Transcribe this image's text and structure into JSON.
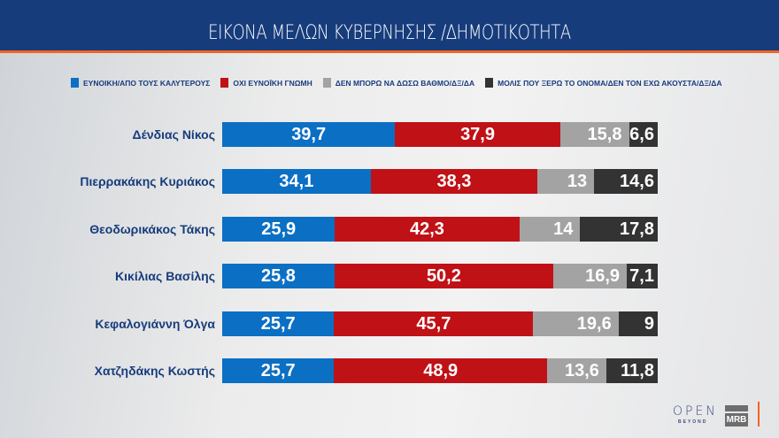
{
  "header": {
    "title": "ΕΙΚΟΝΑ ΜΕΛΩΝ ΚΥΒΕΡΝΗΣΗΣ /ΔΗΜΟΤΙΚΟΤΗΤΑ"
  },
  "chart_data": {
    "type": "bar",
    "orientation": "horizontal-stacked",
    "title": "ΕΙΚΟΝΑ ΜΕΛΩΝ ΚΥΒΕΡΝΗΣΗΣ /ΔΗΜΟΤΙΚΟΤΗΤΑ",
    "legend_position": "top",
    "categories": [
      "Δένδιας Νίκος",
      "Πιερρακάκης Κυριάκος",
      "Θεοδωρικάκος Τάκης",
      "Κικίλιας Βασίλης",
      "Κεφαλογιάννη Όλγα",
      "Χατζηδάκης Κωστής"
    ],
    "series": [
      {
        "name": "ΕΥΝΟΙΚΗ/ΑΠΟ ΤΟΥΣ ΚΑΛΥΤΕΡΟΥΣ",
        "color": "#0b6fc4",
        "values": [
          "39,7",
          "34,1",
          "25,9",
          "25,8",
          "25,7",
          "25,7"
        ]
      },
      {
        "name": "ΟΧΙ ΕΥΝΟΪΚΗ ΓΝΩΜΗ",
        "color": "#c01116",
        "values": [
          "37,9",
          "38,3",
          "42,3",
          "50,2",
          "45,7",
          "48,9"
        ]
      },
      {
        "name": "ΔΕΝ ΜΠΟΡΩ ΝΑ ΔΩΣΩ ΒΑΘΜΟ/ΔΞ/ΔΑ",
        "color": "#a3a3a3",
        "values": [
          "15,8",
          "13",
          "14",
          "16,9",
          "19,6",
          "13,6"
        ]
      },
      {
        "name": "ΜΟΛΙΣ ΠΟΥ ΞΕΡΩ ΤΟ ΟΝΟΜΑ/ΔΕΝ ΤΟΝ ΕΧΩ ΑΚΟΥΣΤΑ/ΔΞ/ΔΑ",
        "color": "#333333",
        "values": [
          "6,6",
          "14,6",
          "17,8",
          "7,1",
          "9",
          "11,8"
        ]
      }
    ]
  },
  "logos": {
    "open": "OPEN",
    "beyond": "BEYOND",
    "mrb": "MRB"
  },
  "colors": {
    "header": "#173c7c",
    "accent": "#f26522",
    "label": "#173c7c"
  }
}
